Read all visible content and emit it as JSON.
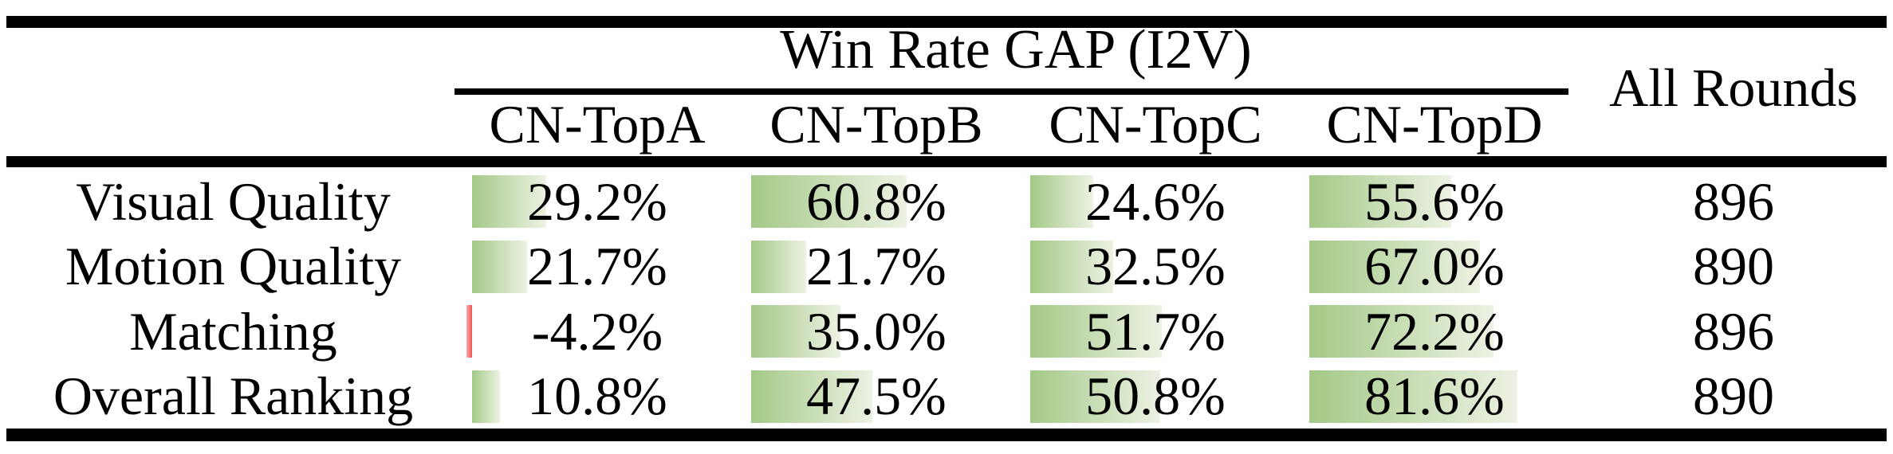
{
  "table": {
    "title": "Win Rate GAP (I2V)",
    "all_rounds_label": "All Rounds",
    "columns": [
      "CN-TopA",
      "CN-TopB",
      "CN-TopC",
      "CN-TopD"
    ],
    "rows": [
      {
        "label": "Visual Quality",
        "values": [
          "29.2%",
          "60.8%",
          "24.6%",
          "55.6%"
        ],
        "all_rounds": "896"
      },
      {
        "label": "Motion Quality",
        "values": [
          "21.7%",
          "21.7%",
          "32.5%",
          "67.0%"
        ],
        "all_rounds": "890"
      },
      {
        "label": "Matching",
        "values": [
          "-4.2%",
          "35.0%",
          "51.7%",
          "72.2%"
        ],
        "all_rounds": "896"
      },
      {
        "label": "Overall Ranking",
        "values": [
          "10.8%",
          "47.5%",
          "50.8%",
          "81.6%"
        ],
        "all_rounds": "890"
      }
    ]
  },
  "colors": {
    "bar_positive_start": "#a3c987",
    "bar_positive_end": "#edf2e3",
    "bar_negative_start": "#f9a8a8",
    "bar_negative_end": "#ef5350",
    "rule": "#000000",
    "text": "#000000",
    "background": "#ffffff"
  }
}
